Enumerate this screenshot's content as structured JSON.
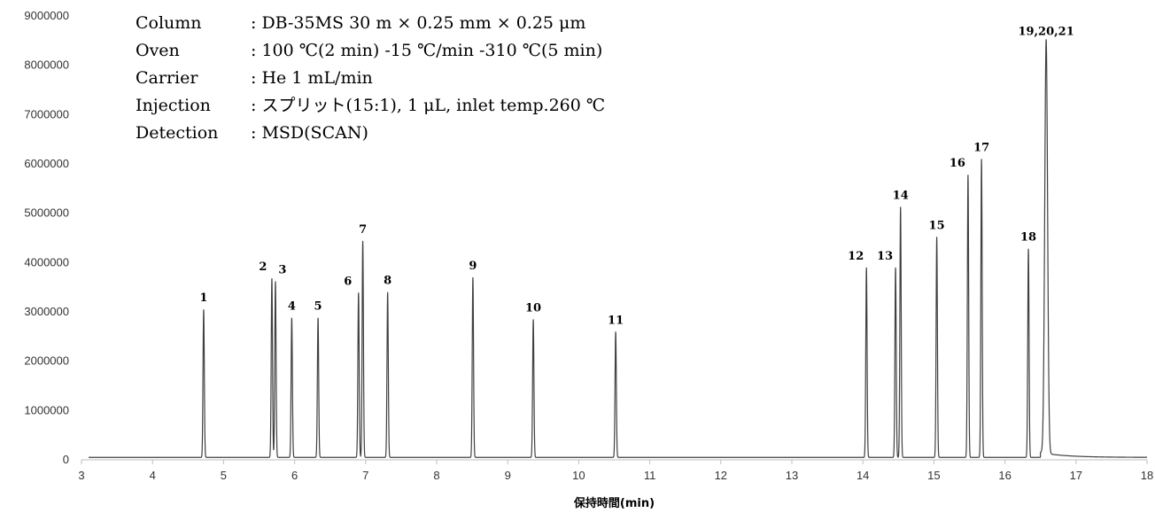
{
  "conditions": [
    {
      "label": "Column",
      "value": ": DB-35MS 30 m × 0.25 mm × 0.25 μm"
    },
    {
      "label": "Oven",
      "value": ": 100 ℃(2 min) -15 ℃/min -310 ℃(5 min)"
    },
    {
      "label": "Carrier",
      "value": ": He 1 mL/min"
    },
    {
      "label": "Injection",
      "value": ": スプリット(15:1), 1 μL, inlet temp.260 ℃"
    },
    {
      "label": "Detection",
      "value": ": MSD(SCAN)"
    }
  ],
  "chart_data": {
    "type": "line",
    "title": "",
    "xlabel": "保持時間(min)",
    "ylabel": "",
    "xlim": [
      3,
      18
    ],
    "ylim": [
      0,
      9000000
    ],
    "xticks": [
      3,
      4,
      5,
      6,
      7,
      8,
      9,
      10,
      11,
      12,
      13,
      14,
      15,
      16,
      17,
      18
    ],
    "yticks": [
      0,
      1000000,
      2000000,
      3000000,
      4000000,
      5000000,
      6000000,
      7000000,
      8000000,
      9000000
    ],
    "baseline": 50000,
    "peaks": [
      {
        "label": "1",
        "rt": 4.72,
        "height": 3050000
      },
      {
        "label": "2",
        "rt": 5.68,
        "height": 3680000
      },
      {
        "label": "3",
        "rt": 5.73,
        "height": 3620000
      },
      {
        "label": "4",
        "rt": 5.96,
        "height": 2880000
      },
      {
        "label": "5",
        "rt": 6.33,
        "height": 2880000
      },
      {
        "label": "6",
        "rt": 6.9,
        "height": 3390000
      },
      {
        "label": "7",
        "rt": 6.96,
        "height": 4440000
      },
      {
        "label": "8",
        "rt": 7.31,
        "height": 3400000
      },
      {
        "label": "9",
        "rt": 8.51,
        "height": 3700000
      },
      {
        "label": "10",
        "rt": 9.36,
        "height": 2850000
      },
      {
        "label": "11",
        "rt": 10.52,
        "height": 2600000
      },
      {
        "label": "12",
        "rt": 14.05,
        "height": 3900000
      },
      {
        "label": "13",
        "rt": 14.46,
        "height": 3900000
      },
      {
        "label": "14",
        "rt": 14.53,
        "height": 5130000
      },
      {
        "label": "15",
        "rt": 15.04,
        "height": 4520000
      },
      {
        "label": "16",
        "rt": 15.48,
        "height": 5780000
      },
      {
        "label": "17",
        "rt": 15.67,
        "height": 6100000
      },
      {
        "label": "18",
        "rt": 16.33,
        "height": 4280000
      },
      {
        "label": "19,20,21",
        "rt": 16.58,
        "height": 8450000
      }
    ]
  }
}
